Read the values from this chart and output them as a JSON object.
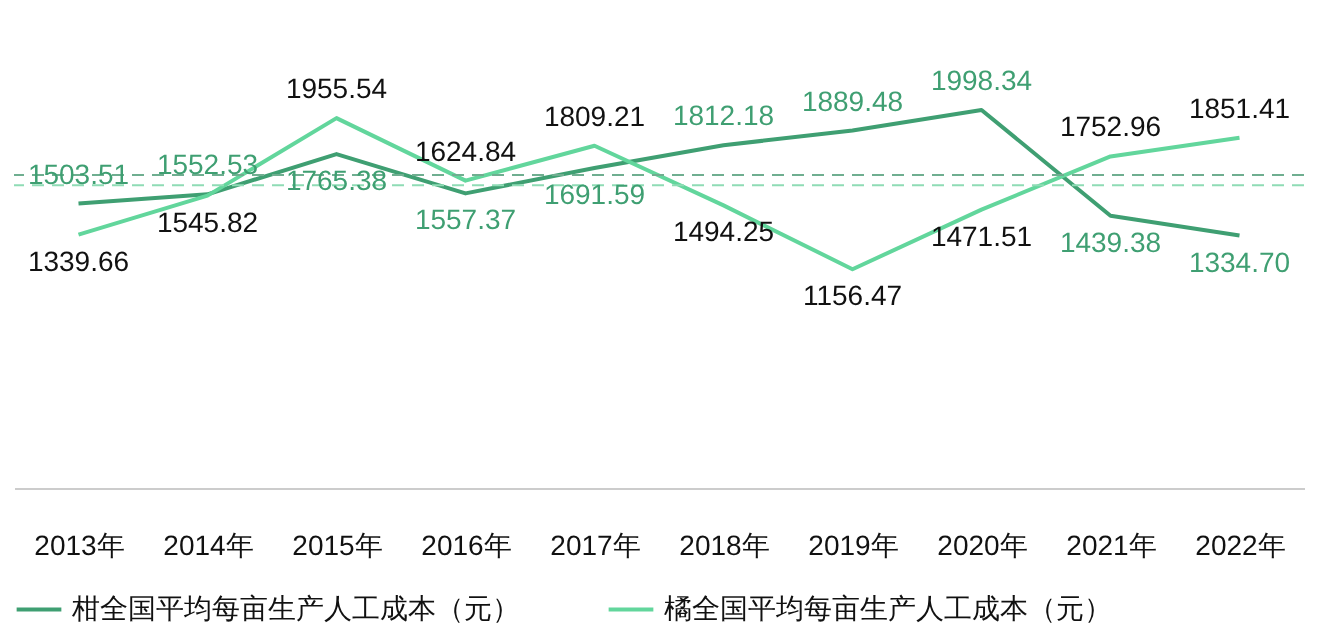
{
  "chart_data": {
    "type": "line",
    "categories": [
      "2013年",
      "2014年",
      "2015年",
      "2016年",
      "2017年",
      "2018年",
      "2019年",
      "2020年",
      "2021年",
      "2022年"
    ],
    "series": [
      {
        "name": "柑全国平均每亩生产人工成本（元）",
        "color": "#3f9f72",
        "values": [
          1503.51,
          1552.53,
          1765.38,
          1557.37,
          1691.59,
          1812.18,
          1889.48,
          1998.34,
          1439.38,
          1334.7
        ],
        "value_labels": [
          "1503.51",
          "1552.53",
          "1765.38",
          "1557.37",
          "1691.59",
          "1812.18",
          "1889.48",
          "1998.34",
          "1439.38",
          "1334.70"
        ]
      },
      {
        "name": "橘全国平均每亩生产人工成本（元）",
        "color": "#62d69c",
        "values": [
          1339.66,
          1545.82,
          1955.54,
          1624.84,
          1809.21,
          1494.25,
          1156.47,
          1471.51,
          1752.96,
          1851.41
        ],
        "value_labels": [
          "1339.66",
          "1545.82",
          "1955.54",
          "1624.84",
          "1809.21",
          "1494.25",
          "1156.47",
          "1471.51",
          "1752.96",
          "1851.41"
        ]
      }
    ],
    "legend": "bottom",
    "marker": "none",
    "line_style": "solid",
    "ref_lines": [
      {
        "axis": "y",
        "value": 1654.45,
        "color": "#6fae90",
        "line_style": "dashed"
      },
      {
        "axis": "y",
        "value": 1600.17,
        "color": "#8fdcb5",
        "line_style": "dashed"
      }
    ]
  }
}
